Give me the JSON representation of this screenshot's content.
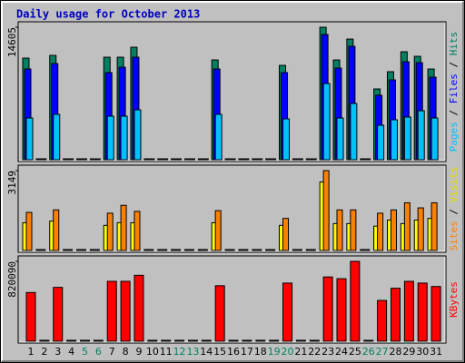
{
  "chart_data": [
    {
      "type": "bar",
      "title": "Daily usage for October 2013",
      "ylim": [
        0,
        14605
      ],
      "yticks": [
        14605
      ],
      "legend_separator": " / ",
      "series": [
        {
          "name": "Pages",
          "color": "#00c0ff",
          "values": [
            4600,
            0,
            5000,
            0,
            0,
            0,
            4800,
            4800,
            5500,
            0,
            0,
            0,
            0,
            0,
            5000,
            0,
            0,
            0,
            0,
            4500,
            0,
            0,
            8400,
            4600,
            6200,
            0,
            3800,
            4400,
            4700,
            5400,
            4600
          ]
        },
        {
          "name": "Files",
          "color": "#0000ff",
          "values": [
            10000,
            0,
            10600,
            0,
            0,
            0,
            9600,
            10200,
            11300,
            0,
            0,
            0,
            0,
            0,
            10000,
            0,
            0,
            0,
            0,
            9600,
            0,
            0,
            13800,
            10100,
            12500,
            0,
            7100,
            8800,
            10800,
            10700,
            9100
          ]
        },
        {
          "name": "Hits",
          "color": "#008060",
          "values": [
            11200,
            0,
            11500,
            0,
            0,
            0,
            11300,
            11300,
            12400,
            0,
            0,
            0,
            0,
            0,
            11000,
            0,
            0,
            0,
            0,
            10400,
            0,
            0,
            14605,
            11000,
            13300,
            0,
            7800,
            9700,
            11900,
            11400,
            10000
          ]
        }
      ]
    },
    {
      "type": "bar",
      "ylim": [
        0,
        3149
      ],
      "yticks": [
        3149
      ],
      "legend_separator": " / ",
      "series": [
        {
          "name": "Sites",
          "color": "#ff8000",
          "values": [
            1500,
            0,
            1600,
            0,
            0,
            0,
            1470,
            1780,
            1540,
            0,
            0,
            0,
            0,
            0,
            1570,
            0,
            0,
            0,
            0,
            1265,
            0,
            0,
            3149,
            1600,
            1600,
            0,
            1470,
            1600,
            1880,
            1680,
            1880
          ]
        },
        {
          "name": "Visits",
          "color": "#ffff00",
          "values": [
            1095,
            0,
            1160,
            0,
            0,
            0,
            990,
            1095,
            1095,
            0,
            0,
            0,
            0,
            0,
            1095,
            0,
            0,
            0,
            0,
            990,
            0,
            0,
            2700,
            1060,
            1060,
            0,
            960,
            1200,
            1060,
            1200,
            1265
          ]
        }
      ]
    },
    {
      "type": "bar",
      "ylim": [
        0,
        820090
      ],
      "yticks": [
        820090
      ],
      "categories": [
        "1",
        "2",
        "3",
        "4",
        "5",
        "6",
        "7",
        "8",
        "9",
        "10",
        "11",
        "12",
        "13",
        "14",
        "15",
        "16",
        "17",
        "18",
        "19",
        "20",
        "21",
        "22",
        "23",
        "24",
        "25",
        "26",
        "27",
        "28",
        "29",
        "30",
        "31"
      ],
      "category_colors": [
        "#000000",
        "#000000",
        "#000000",
        "#000000",
        "#008060",
        "#008060",
        "#000000",
        "#000000",
        "#000000",
        "#000000",
        "#000000",
        "#008060",
        "#008060",
        "#000000",
        "#000000",
        "#000000",
        "#000000",
        "#000000",
        "#008060",
        "#008060",
        "#000000",
        "#000000",
        "#000000",
        "#000000",
        "#000000",
        "#008060",
        "#008060",
        "#000000",
        "#000000",
        "#000000",
        "#000000"
      ],
      "series": [
        {
          "name": "KBytes",
          "color": "#ff0000",
          "values": [
            500000,
            0,
            553000,
            0,
            0,
            0,
            615000,
            615000,
            677000,
            0,
            0,
            0,
            0,
            0,
            570000,
            0,
            0,
            0,
            0,
            597000,
            0,
            0,
            660000,
            642000,
            820090,
            0,
            419000,
            544000,
            615000,
            597000,
            562000
          ]
        }
      ]
    }
  ]
}
